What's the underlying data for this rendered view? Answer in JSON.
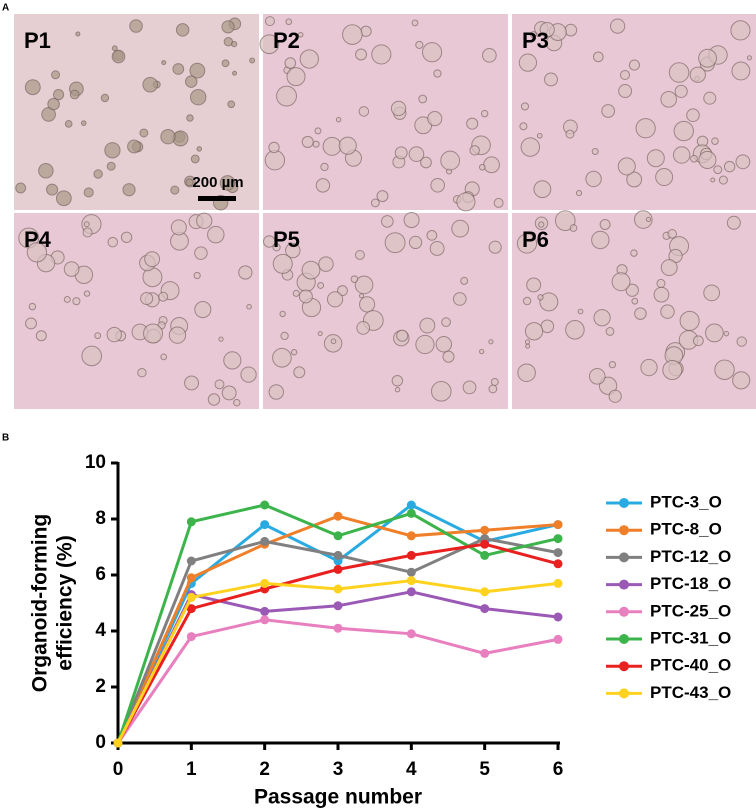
{
  "panels": {
    "a_label": "A",
    "b_label": "B",
    "images": [
      "P1",
      "P2",
      "P3",
      "P4",
      "P5",
      "P6"
    ],
    "scale_bar": "200 µm"
  },
  "chart_data": {
    "type": "line",
    "x_label": "Passage number",
    "y_label": [
      "Organoid-forming",
      "efficiency (%)"
    ],
    "x": [
      0,
      1,
      2,
      3,
      4,
      5,
      6
    ],
    "xlim": [
      0,
      6
    ],
    "xticks": [
      0,
      1,
      2,
      3,
      4,
      5,
      6
    ],
    "ylim": [
      0,
      10
    ],
    "yticks": [
      0,
      2,
      4,
      6,
      8,
      10
    ],
    "legend": "right",
    "series": [
      {
        "name": "PTC-3_O",
        "color": "#29abe2",
        "values": [
          0,
          5.7,
          7.8,
          6.5,
          8.5,
          7.2,
          7.8
        ]
      },
      {
        "name": "PTC-8_O",
        "color": "#f07f2a",
        "values": [
          0,
          5.9,
          7.1,
          8.1,
          7.4,
          7.6,
          7.8
        ]
      },
      {
        "name": "PTC-12_O",
        "color": "#808080",
        "values": [
          0,
          6.5,
          7.2,
          6.7,
          6.1,
          7.3,
          6.8
        ]
      },
      {
        "name": "PTC-18_O",
        "color": "#9b59b6",
        "values": [
          0,
          5.3,
          4.7,
          4.9,
          5.4,
          4.8,
          4.5
        ]
      },
      {
        "name": "PTC-25_O",
        "color": "#e87fbf",
        "values": [
          0,
          3.8,
          4.4,
          4.1,
          3.9,
          3.2,
          3.7
        ]
      },
      {
        "name": "PTC-31_O",
        "color": "#3cb44b",
        "values": [
          0,
          7.9,
          8.5,
          7.4,
          8.2,
          6.7,
          7.3
        ]
      },
      {
        "name": "PTC-40_O",
        "color": "#e8201f",
        "values": [
          0,
          4.8,
          5.5,
          6.2,
          6.7,
          7.1,
          6.4
        ]
      },
      {
        "name": "PTC-43_O",
        "color": "#ffd21f",
        "values": [
          0,
          5.2,
          5.7,
          5.5,
          5.8,
          5.4,
          5.7
        ]
      }
    ]
  }
}
